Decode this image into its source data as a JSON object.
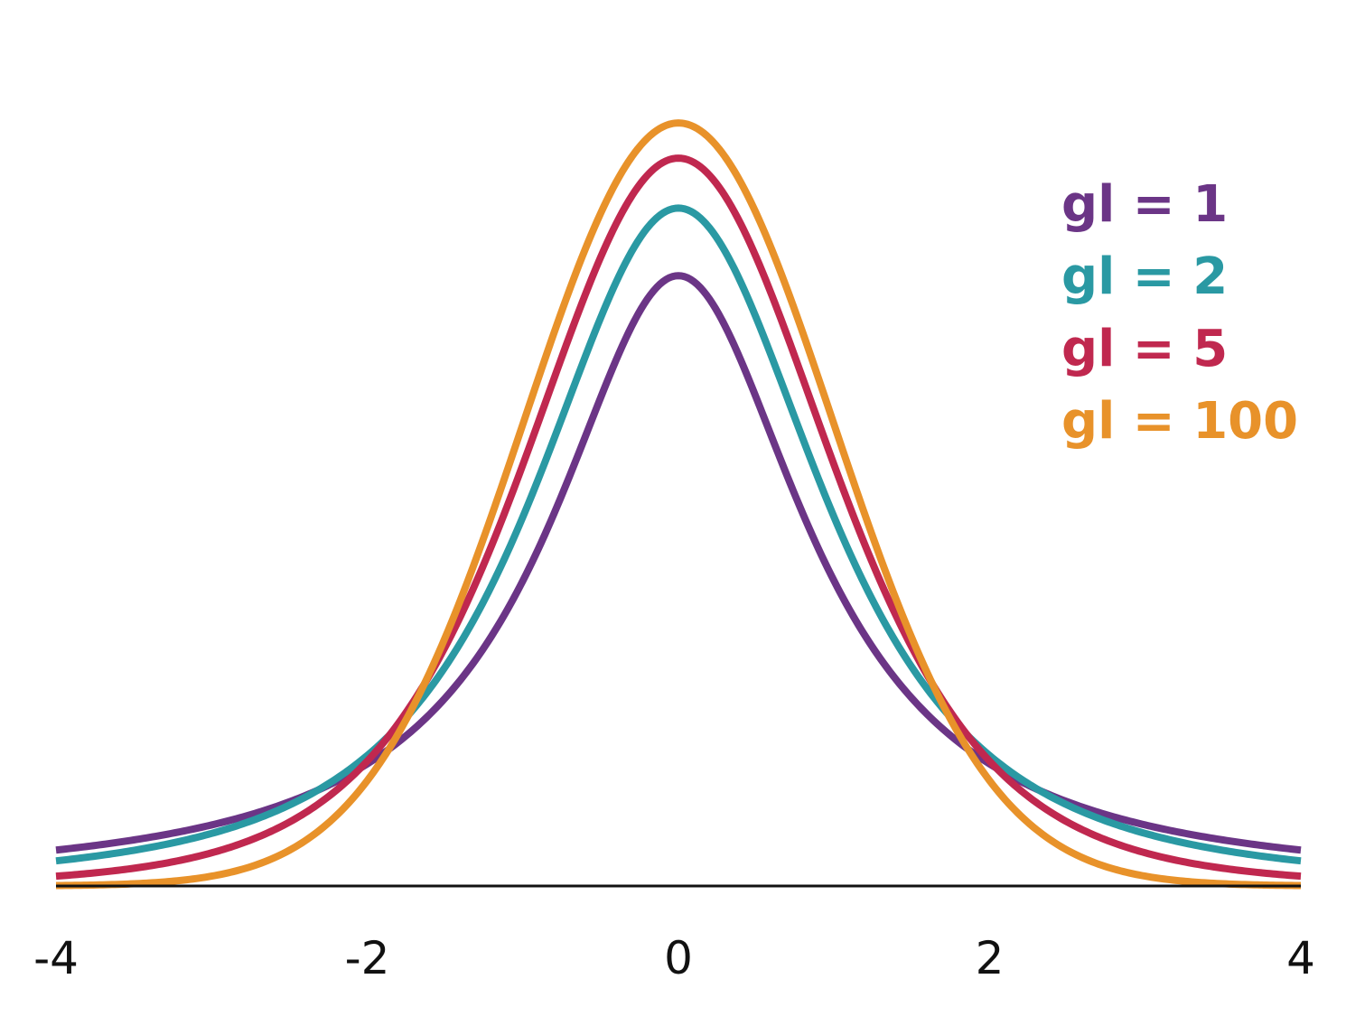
{
  "chart_data": {
    "type": "line",
    "title": "",
    "xlabel": "",
    "ylabel": "",
    "xlim": [
      -4,
      4
    ],
    "ylim": [
      0,
      0.4
    ],
    "x_ticks": [
      -4,
      -2,
      0,
      2,
      4
    ],
    "x_tick_labels": [
      "-4",
      "-2",
      "0",
      "2",
      "4"
    ],
    "grid": false,
    "legend_position": "top-right",
    "function": "student-t probability density",
    "series": [
      {
        "name": "gl = 1",
        "df": 1,
        "color": "#6b3586"
      },
      {
        "name": "gl = 2",
        "df": 2,
        "color": "#2a99a3"
      },
      {
        "name": "gl = 5",
        "df": 5,
        "color": "#c0284f"
      },
      {
        "name": "gl = 100",
        "df": 100,
        "color": "#e8922a"
      }
    ],
    "legend_order": [
      0,
      1,
      2,
      3
    ]
  }
}
